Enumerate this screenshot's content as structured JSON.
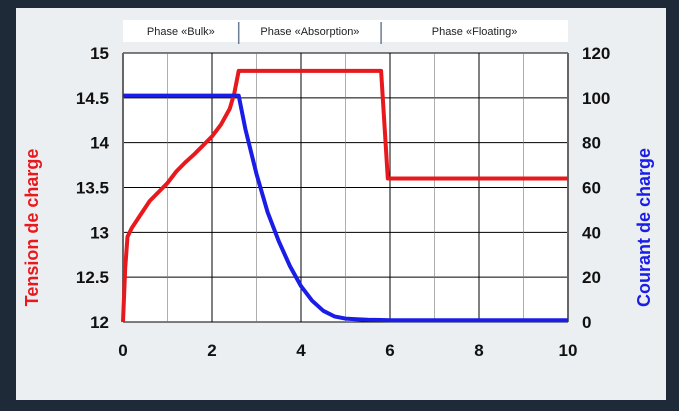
{
  "chart_data": {
    "type": "line",
    "x_ticks": [
      "0",
      "2",
      "4",
      "6",
      "8",
      "10"
    ],
    "y_left_ticks": [
      "12",
      "12.5",
      "13",
      "13.5",
      "14",
      "14.5",
      "15"
    ],
    "y_right_ticks": [
      "0",
      "20",
      "40",
      "60",
      "80",
      "100",
      "120"
    ],
    "ylabel_left": "Tension de charge",
    "ylabel_right": "Courant de charge",
    "xlim": [
      0,
      10
    ],
    "ylim_left": [
      12,
      15
    ],
    "ylim_right": [
      0,
      120
    ],
    "grid": true,
    "phases": [
      {
        "label": "Phase «Bulk»",
        "x_start": 0,
        "x_end": 2.6
      },
      {
        "label": "Phase «Absorption»",
        "x_start": 2.6,
        "x_end": 5.8
      },
      {
        "label": "Phase «Floating»",
        "x_start": 5.8,
        "x_end": 10
      }
    ],
    "series": [
      {
        "axis": "left",
        "color": "#e8191c",
        "x": [
          0,
          0.05,
          0.1,
          0.2,
          0.4,
          0.6,
          0.8,
          1.0,
          1.2,
          1.4,
          1.6,
          1.8,
          2.0,
          2.2,
          2.4,
          2.5,
          2.6,
          2.6,
          5.8,
          5.8,
          5.95,
          10
        ],
        "y": [
          12.0,
          12.6,
          12.95,
          13.05,
          13.2,
          13.35,
          13.45,
          13.55,
          13.68,
          13.78,
          13.87,
          13.97,
          14.07,
          14.2,
          14.38,
          14.55,
          14.8,
          14.8,
          14.8,
          14.8,
          13.6,
          13.6
        ]
      },
      {
        "axis": "right",
        "color": "#1a1de6",
        "x": [
          0,
          2.6,
          2.75,
          3.0,
          3.25,
          3.5,
          3.75,
          4.0,
          4.25,
          4.5,
          4.75,
          5.0,
          5.25,
          5.5,
          6.0,
          10
        ],
        "y": [
          101,
          101,
          86,
          66,
          49,
          36,
          25,
          16,
          9.5,
          5,
          2.5,
          1.5,
          1.2,
          1.0,
          0.8,
          0.8
        ]
      }
    ]
  }
}
